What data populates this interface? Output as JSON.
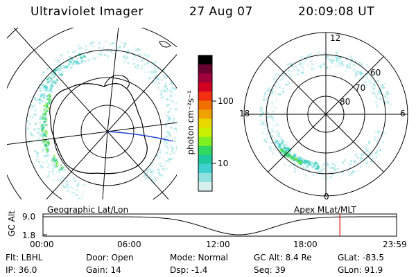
{
  "header": {
    "instrument": "Ultraviolet Imager",
    "date": "27 Aug 07",
    "time": "20:09:08 UT"
  },
  "colorbar": {
    "unit_label": "photon cm⁻²s⁻¹",
    "ticks": [
      "100",
      "10"
    ],
    "colors": [
      "#000000",
      "#6a0030",
      "#a0003a",
      "#d00020",
      "#f03010",
      "#f07000",
      "#f0a000",
      "#e8d800",
      "#c8f000",
      "#80f020",
      "#30d860",
      "#20c8a0",
      "#40d0d0",
      "#90e0e0",
      "#d8f0f0"
    ]
  },
  "left_map": {
    "label": "Geographic Lat/Lon"
  },
  "right_map": {
    "label": "Apex  MLat/MLT",
    "mlt_labels": {
      "top": "12",
      "bottom": "0",
      "left": "18",
      "right": "6"
    },
    "lat_labels": [
      "60",
      "70",
      "80"
    ]
  },
  "altitude_plot": {
    "ylabel": "GC Alt",
    "yticks": [
      "9.0",
      "1.8"
    ],
    "xticks": [
      "00:00",
      "06:00",
      "12:00",
      "18:00",
      "23:59"
    ],
    "marker_color": "#e00000",
    "marker_time_hours": 20.15
  },
  "info": {
    "filter": "Flt: LBHL",
    "ip": "IP: 36.0",
    "door": "Door: Open",
    "gain": "Gain: 14",
    "mode": "Mode: Normal",
    "dsp": "Dsp:    -1.4",
    "gc_alt": "GC Alt: 8.4 Re",
    "seq": "Seq: 39",
    "glat": "GLat:  -83.5",
    "glon": "GLon:  91.9"
  }
}
